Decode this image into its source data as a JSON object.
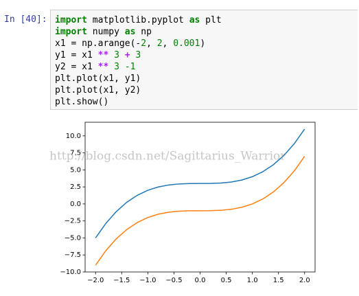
{
  "cell": {
    "prompt": "In [40]:",
    "code": [
      [
        "import",
        " matplotlib.pyplot ",
        "as",
        " plt"
      ],
      [
        "import",
        " numpy ",
        "as",
        " np"
      ],
      [
        "x1 = np.arange(-",
        "2",
        ", ",
        "2",
        ", ",
        "0.001",
        ")"
      ],
      [
        "y1 = x1 ",
        "**",
        " ",
        "3",
        " ",
        "+",
        " ",
        "3"
      ],
      [
        "y2 = x1 ",
        "**",
        " ",
        "3",
        " ",
        "-1"
      ],
      [
        "plt.plot(x1, y1)"
      ],
      [
        "plt.plot(x1, y2)"
      ],
      [
        "plt.show()"
      ]
    ]
  },
  "watermark": "http://blog.csdn.net/Sagittarius_Warrior",
  "chart_data": {
    "type": "line",
    "x": [
      -2,
      -1.8,
      -1.6,
      -1.4,
      -1.2,
      -1,
      -0.8,
      -0.6,
      -0.4,
      -0.2,
      0,
      0.2,
      0.4,
      0.6,
      0.8,
      1,
      1.2,
      1.4,
      1.6,
      1.8,
      2
    ],
    "series": [
      {
        "color": "#1f77b4",
        "values": [
          -5,
          -2.832,
          -1.096,
          0.256,
          1.272,
          2,
          2.488,
          2.784,
          2.936,
          2.992,
          3,
          3.008,
          3.064,
          3.216,
          3.512,
          4,
          4.728,
          5.744,
          7.096,
          8.832,
          11
        ]
      },
      {
        "color": "#ff7f0e",
        "values": [
          -9,
          -6.832,
          -5.096,
          -3.744,
          -2.728,
          -2,
          -1.512,
          -1.216,
          -1.064,
          -1.008,
          -1,
          -0.992,
          -0.936,
          -0.784,
          -0.488,
          0,
          0.728,
          1.744,
          3.096,
          4.832,
          7
        ]
      }
    ],
    "xlim": [
      -2.2,
      2.2
    ],
    "ylim": [
      -10,
      12
    ],
    "xticks": [
      {
        "value": -2,
        "label": "−2.0"
      },
      {
        "value": -1.5,
        "label": "−1.5"
      },
      {
        "value": -1,
        "label": "−1.0"
      },
      {
        "value": -0.5,
        "label": "−0.5"
      },
      {
        "value": 0,
        "label": "0.0"
      },
      0.5,
      {
        "value": 1,
        "label": "1.0"
      },
      1.5,
      {
        "value": 2,
        "label": "2.0"
      }
    ],
    "yticks": [
      {
        "value": -10,
        "label": "−10.0"
      },
      {
        "value": -7.5,
        "label": "−7.5"
      },
      {
        "value": -5,
        "label": "−5.0"
      },
      {
        "value": -2.5,
        "label": "−2.5"
      },
      {
        "value": 0,
        "label": "0.0"
      },
      2.5,
      {
        "value": 5,
        "label": "5.0"
      },
      7.5,
      {
        "value": 10,
        "label": "10.0"
      }
    ]
  }
}
